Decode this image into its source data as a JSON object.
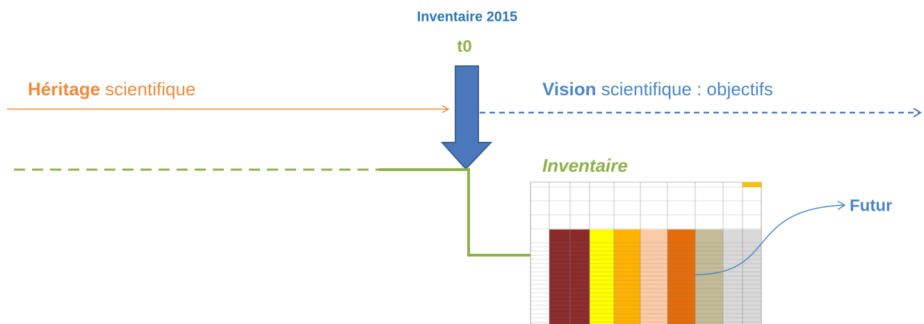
{
  "header": {
    "title": "Inventaire 2015",
    "time": "t0"
  },
  "heritage": {
    "bold": "Héritage",
    "rest": "scientifique"
  },
  "vision": {
    "bold": "Vision",
    "rest": "scientifique : objectifs"
  },
  "inventory": {
    "label": "Inventaire"
  },
  "future": {
    "label": "Futur"
  }
}
